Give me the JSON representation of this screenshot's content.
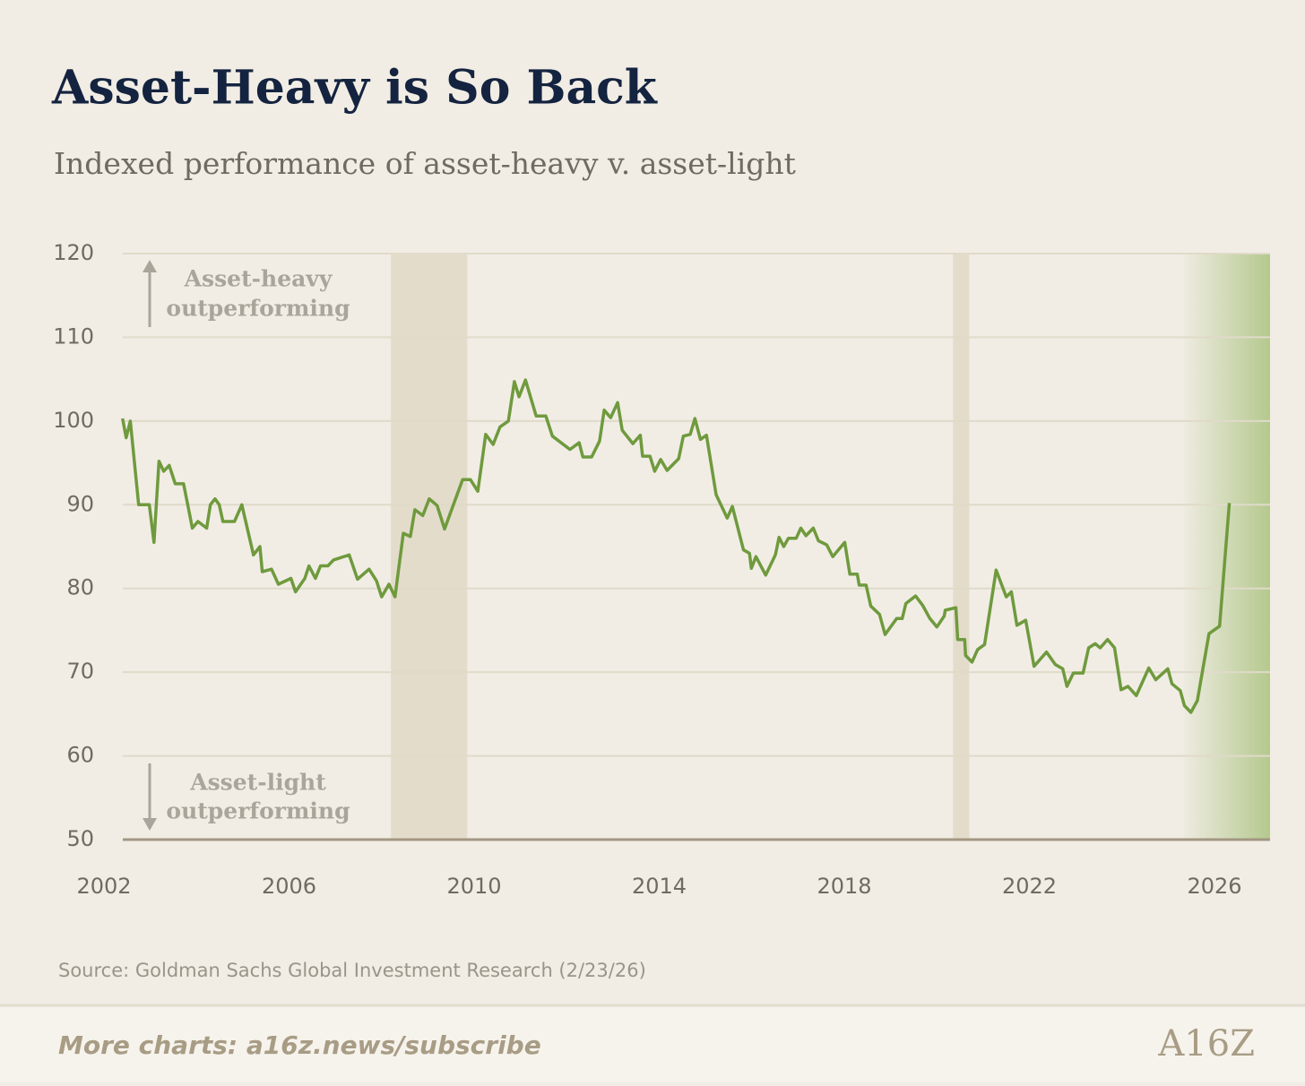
{
  "chart_data": {
    "type": "line",
    "title": "Asset-Heavy is So Back",
    "subtitle": "Indexed performance of asset-heavy v. asset-light",
    "source": "Source: Goldman Sachs Global Investment Research (2/23/26)",
    "footer": "More charts: a16z.news/subscribe",
    "logo": "A16Z",
    "annotations": [
      [
        "Asset-heavy",
        "outperforming"
      ],
      [
        "Asset-light",
        "outperforming"
      ]
    ],
    "xlim": [
      2002,
      2027.2
    ],
    "xticks": [
      2002,
      2006,
      2010,
      2014,
      2018,
      2022,
      2026
    ],
    "ylim": [
      50,
      120
    ],
    "yticks": [
      50,
      60,
      70,
      80,
      90,
      100,
      110,
      120
    ],
    "grid": true,
    "shaded_regions": [
      [
        2008.2,
        2009.85
      ],
      [
        2020.35,
        2020.7
      ]
    ],
    "shaded_color": "#e3dccb",
    "highlight_region": [
      2025.33,
      2027.2
    ],
    "highlight_color": "#b5c98e",
    "x": [
      2002.4,
      2002.48,
      2002.57,
      2002.75,
      2002.98,
      2003.08,
      2003.19,
      2003.29,
      2003.41,
      2003.54,
      2003.72,
      2003.91,
      2004.03,
      2004.22,
      2004.3,
      2004.4,
      2004.49,
      2004.57,
      2004.82,
      2004.98,
      2005.23,
      2005.37,
      2005.42,
      2005.62,
      2005.77,
      2006.04,
      2006.14,
      2006.34,
      2006.43,
      2006.57,
      2006.68,
      2006.84,
      2006.96,
      2007.3,
      2007.48,
      2007.73,
      2007.89,
      2008.0,
      2008.16,
      2008.29,
      2008.47,
      2008.62,
      2008.72,
      2008.89,
      2009.03,
      2009.2,
      2009.36,
      2009.75,
      2009.92,
      2010.08,
      2010.25,
      2010.41,
      2010.56,
      2010.74,
      2010.87,
      2010.97,
      2011.11,
      2011.34,
      2011.55,
      2011.69,
      2012.07,
      2012.27,
      2012.35,
      2012.54,
      2012.71,
      2012.81,
      2012.95,
      2013.1,
      2013.2,
      2013.43,
      2013.59,
      2013.64,
      2013.8,
      2013.9,
      2014.03,
      2014.17,
      2014.42,
      2014.52,
      2014.67,
      2014.77,
      2014.89,
      2015.02,
      2015.23,
      2015.47,
      2015.58,
      2015.82,
      2015.95,
      2015.99,
      2016.09,
      2016.3,
      2016.51,
      2016.59,
      2016.69,
      2016.79,
      2016.96,
      2017.06,
      2017.17,
      2017.33,
      2017.44,
      2017.62,
      2017.75,
      2018.01,
      2018.12,
      2018.28,
      2018.32,
      2018.47,
      2018.57,
      2018.76,
      2018.88,
      2019.13,
      2019.25,
      2019.33,
      2019.54,
      2019.69,
      2019.85,
      2020.0,
      2020.16,
      2020.18,
      2020.41,
      2020.45,
      2020.6,
      2020.62,
      2020.76,
      2020.88,
      2021.03,
      2021.28,
      2021.5,
      2021.61,
      2021.73,
      2021.92,
      2022.1,
      2022.37,
      2022.56,
      2022.72,
      2022.81,
      2022.95,
      2023.16,
      2023.28,
      2023.42,
      2023.53,
      2023.69,
      2023.84,
      2023.98,
      2024.13,
      2024.31,
      2024.58,
      2024.73,
      2024.99,
      2025.08,
      2025.26,
      2025.35,
      2025.49,
      2025.63,
      2025.88,
      2026.11,
      2026.32
    ],
    "series": [
      {
        "name": "Asset-heavy v. asset-light",
        "color": "#6f9a3d",
        "values": [
          100.3,
          98,
          100,
          90,
          90,
          85.5,
          95.2,
          94,
          94.7,
          92.5,
          92.5,
          87.2,
          88,
          87.2,
          90,
          90.7,
          90,
          88,
          88,
          90,
          84,
          85,
          82,
          82.3,
          80.5,
          81.2,
          79.6,
          81.2,
          82.7,
          81.2,
          82.7,
          82.7,
          83.4,
          84,
          81.1,
          82.3,
          80.9,
          79,
          80.5,
          79,
          86.6,
          86.2,
          89.4,
          88.7,
          90.7,
          89.9,
          87.1,
          93,
          93,
          91.6,
          98.4,
          97.2,
          99.3,
          100,
          104.7,
          102.9,
          104.9,
          100.6,
          100.6,
          98.2,
          96.6,
          97.4,
          95.7,
          95.7,
          97.6,
          101.3,
          100.4,
          102.2,
          98.9,
          97.3,
          98.3,
          95.8,
          95.8,
          94,
          95.4,
          94.1,
          95.5,
          98.2,
          98.4,
          100.3,
          97.8,
          98.3,
          91.2,
          88.4,
          89.8,
          84.6,
          84.2,
          82.4,
          83.8,
          81.6,
          84,
          86.1,
          85,
          86,
          86,
          87.2,
          86.3,
          87.2,
          85.7,
          85.2,
          83.8,
          85.5,
          81.7,
          81.7,
          80.4,
          80.4,
          77.9,
          76.9,
          74.5,
          76.4,
          76.4,
          78.2,
          79.1,
          78,
          76.4,
          75.4,
          76.7,
          77.4,
          77.7,
          73.9,
          73.9,
          72,
          71.2,
          72.7,
          73.3,
          82.2,
          79,
          79.6,
          75.6,
          76.2,
          70.7,
          72.4,
          70.9,
          70.4,
          68.3,
          69.9,
          69.9,
          72.9,
          73.4,
          72.9,
          73.9,
          72.9,
          67.9,
          68.3,
          67.2,
          70.5,
          69.1,
          70.4,
          68.6,
          67.8,
          66,
          65.2,
          66.6,
          74.6,
          75.5,
          90.2
        ]
      }
    ]
  }
}
